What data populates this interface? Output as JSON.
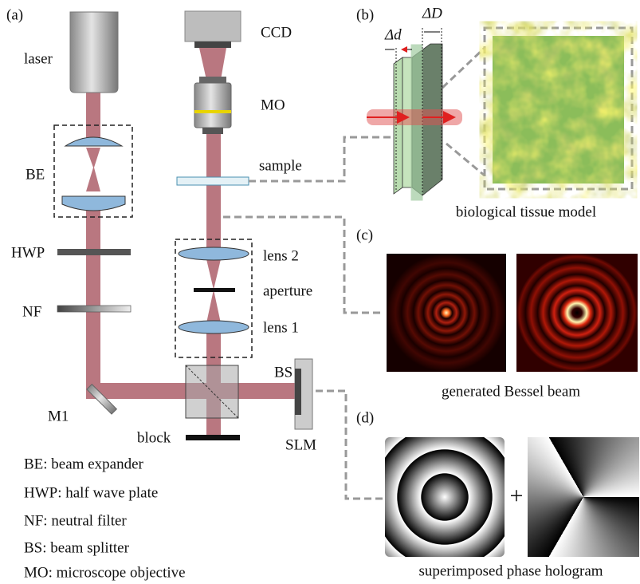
{
  "panel_a": {
    "tag": "(a)",
    "laser": "laser",
    "be": "BE",
    "hwp": "HWP",
    "nf": "NF",
    "m1": "M1",
    "block": "block",
    "ccd": "CCD",
    "mo": "MO",
    "sample": "sample",
    "lens2": "lens 2",
    "aperture": "aperture",
    "lens1": "lens 1",
    "bs": "BS",
    "slm": "SLM",
    "legend": [
      "BE: beam expander",
      "HWP: half wave plate",
      "NF: neutral filter",
      "BS: beam splitter",
      "MO: microscope objective"
    ]
  },
  "panel_b": {
    "tag": "(b)",
    "delta_d": "Δd",
    "delta_D": "ΔD",
    "caption": "biological tissue model"
  },
  "panel_c": {
    "tag": "(c)",
    "caption": "generated Bessel beam"
  },
  "panel_d": {
    "tag": "(d)",
    "plus": "+",
    "caption": "superimposed phase hologram"
  }
}
